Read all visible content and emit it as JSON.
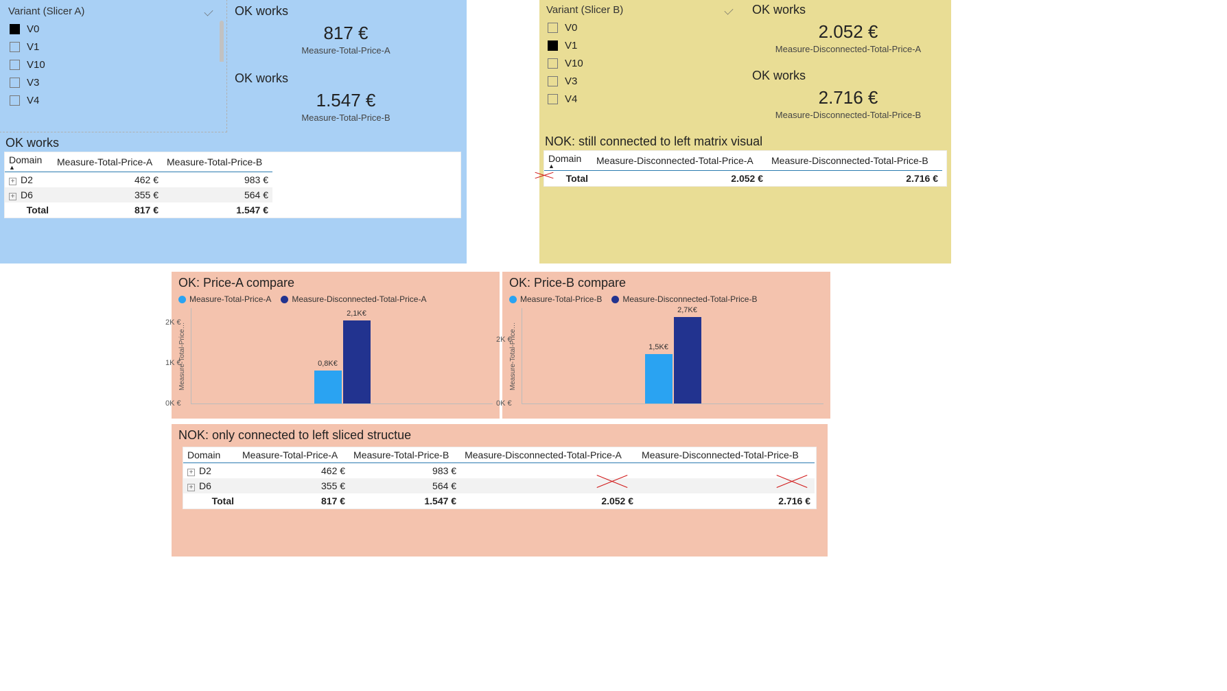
{
  "colors": {
    "section_a_bg": "#a9d0f5",
    "section_b_bg": "#e9dd95",
    "section_c_bg": "#f4c3ae",
    "bar_series1": "#2aa3f2",
    "bar_series2": "#22338f",
    "redX": "#d01414",
    "matrix_header_rule": "#2a7ab0"
  },
  "slicerA": {
    "title": "Variant (Slicer A)",
    "items": [
      {
        "label": "V0",
        "checked": true
      },
      {
        "label": "V1",
        "checked": false
      },
      {
        "label": "V10",
        "checked": false
      },
      {
        "label": "V3",
        "checked": false
      },
      {
        "label": "V4",
        "checked": false
      }
    ]
  },
  "slicerB": {
    "title": "Variant (Slicer B)",
    "items": [
      {
        "label": "V0",
        "checked": false
      },
      {
        "label": "V1",
        "checked": true
      },
      {
        "label": "V10",
        "checked": false
      },
      {
        "label": "V3",
        "checked": false
      },
      {
        "label": "V4",
        "checked": false
      }
    ]
  },
  "cardsA": [
    {
      "title": "OK works",
      "value": "817 €",
      "sub": "Measure-Total-Price-A"
    },
    {
      "title": "OK works",
      "value": "1.547 €",
      "sub": "Measure-Total-Price-B"
    }
  ],
  "cardsB": [
    {
      "title": "OK works",
      "value": "2.052 €",
      "sub": "Measure-Disconnected-Total-Price-A"
    },
    {
      "title": "OK works",
      "value": "2.716 €",
      "sub": "Measure-Disconnected-Total-Price-B"
    }
  ],
  "matrixA": {
    "title": "OK works",
    "columns": [
      "Domain",
      "Measure-Total-Price-A",
      "Measure-Total-Price-B"
    ],
    "rows": [
      {
        "domain": "D2",
        "a": "462 €",
        "b": "983 €"
      },
      {
        "domain": "D6",
        "a": "355 €",
        "b": "564 €"
      }
    ],
    "total": {
      "label": "Total",
      "a": "817 €",
      "b": "1.547 €"
    }
  },
  "matrixB": {
    "title": "NOK: still connected to left matrix visual",
    "columns": [
      "Domain",
      "Measure-Disconnected-Total-Price-A",
      "Measure-Disconnected-Total-Price-B"
    ],
    "total": {
      "label": "Total",
      "a": "2.052 €",
      "b": "2.716 €"
    }
  },
  "chartA": {
    "title": "OK: Price-A compare",
    "type": "bar",
    "y_label": "Measure-Total-Price…",
    "y_ticks": [
      {
        "v": 0,
        "label": "0K €"
      },
      {
        "v": 1,
        "label": "1K €"
      },
      {
        "v": 2,
        "label": "2K €"
      }
    ],
    "ylim": [
      0,
      2.2
    ],
    "legend": [
      {
        "label": "Measure-Total-Price-A",
        "color": "#2aa3f2"
      },
      {
        "label": "Measure-Disconnected-Total-Price-A",
        "color": "#22338f"
      }
    ],
    "bars": [
      {
        "value": 0.817,
        "label": "0,8K€",
        "color": "#2aa3f2"
      },
      {
        "value": 2.052,
        "label": "2,1K€",
        "color": "#22338f"
      }
    ]
  },
  "chartB": {
    "title": "OK: Price-B compare",
    "type": "bar",
    "y_label": "Measure-Total-Price…",
    "y_ticks": [
      {
        "v": 0,
        "label": "0K €"
      },
      {
        "v": 2,
        "label": "2K €"
      }
    ],
    "ylim": [
      0,
      2.8
    ],
    "legend": [
      {
        "label": "Measure-Total-Price-B",
        "color": "#2aa3f2"
      },
      {
        "label": "Measure-Disconnected-Total-Price-B",
        "color": "#22338f"
      }
    ],
    "bars": [
      {
        "value": 1.547,
        "label": "1,5K€",
        "color": "#2aa3f2"
      },
      {
        "value": 2.716,
        "label": "2,7K€",
        "color": "#22338f"
      }
    ]
  },
  "matrixBottom": {
    "title": "NOK: only connected to left sliced structue",
    "columns": [
      "Domain",
      "Measure-Total-Price-A",
      "Measure-Total-Price-B",
      "Measure-Disconnected-Total-Price-A",
      "Measure-Disconnected-Total-Price-B"
    ],
    "rows": [
      {
        "domain": "D2",
        "a": "462 €",
        "b": "983 €",
        "c": "",
        "d": ""
      },
      {
        "domain": "D6",
        "a": "355 €",
        "b": "564 €",
        "c": "",
        "d": ""
      }
    ],
    "total": {
      "label": "Total",
      "a": "817 €",
      "b": "1.547 €",
      "c": "2.052 €",
      "d": "2.716 €"
    }
  }
}
